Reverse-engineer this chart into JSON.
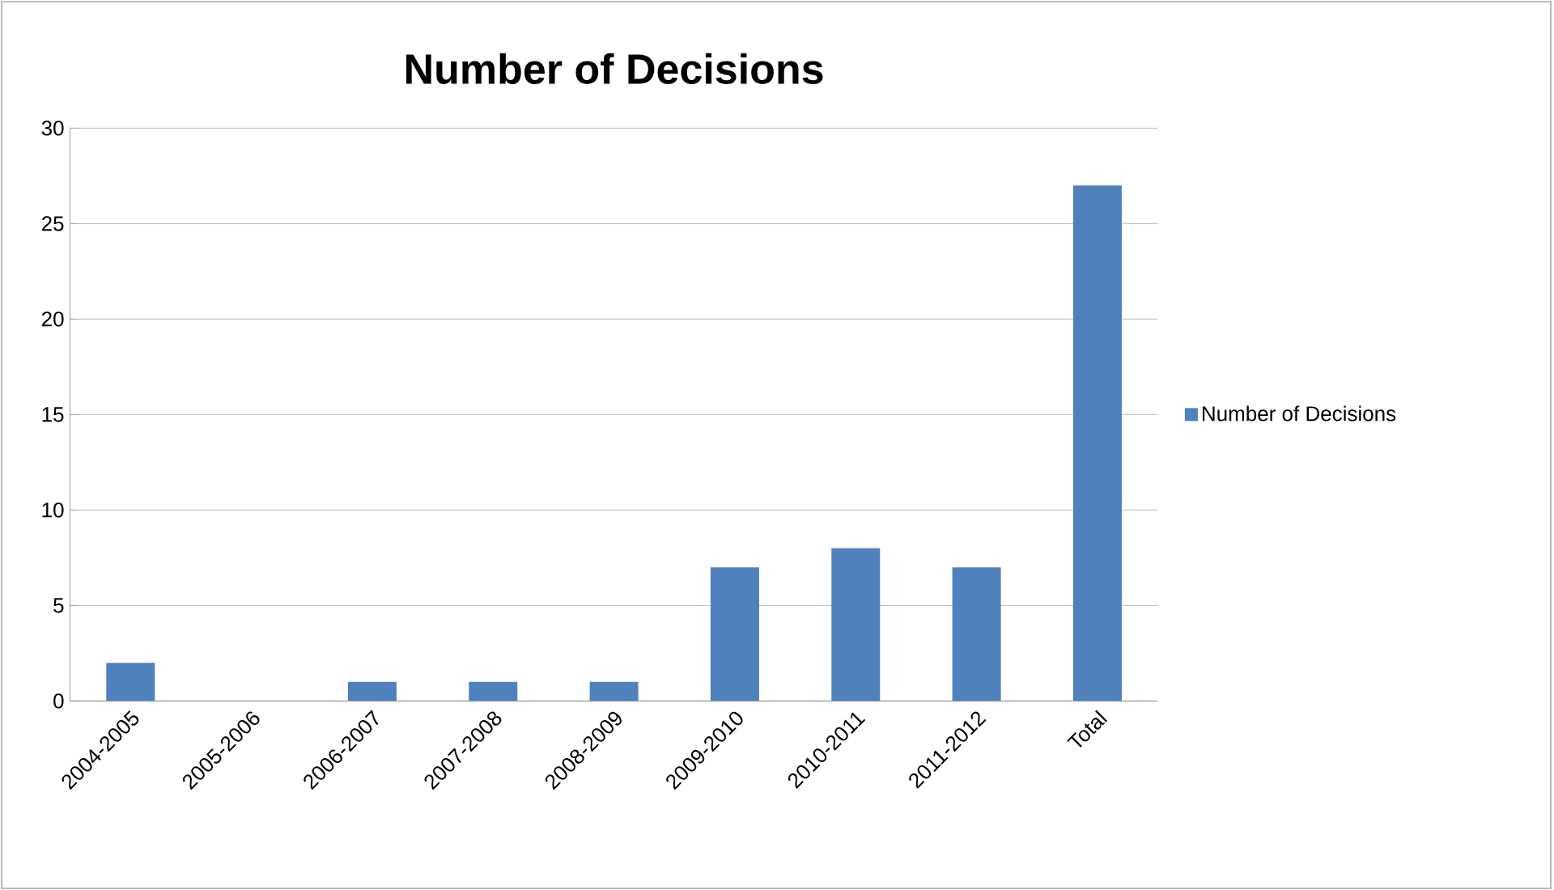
{
  "chart_data": {
    "type": "bar",
    "title": "Number of Decisions",
    "categories": [
      "2004-2005",
      "2005-2006",
      "2006-2007",
      "2007-2008",
      "2008-2009",
      "2009-2010",
      "2010-2011",
      "2011-2012",
      "Total"
    ],
    "series": [
      {
        "name": "Number of Decisions",
        "color": "#4f81bd",
        "values": [
          2,
          0,
          1,
          1,
          1,
          7,
          8,
          7,
          27
        ]
      }
    ],
    "ylim": [
      0,
      30
    ],
    "yticks": [
      0,
      5,
      10,
      15,
      20,
      25,
      30
    ],
    "grid": "y",
    "legend": "right"
  }
}
